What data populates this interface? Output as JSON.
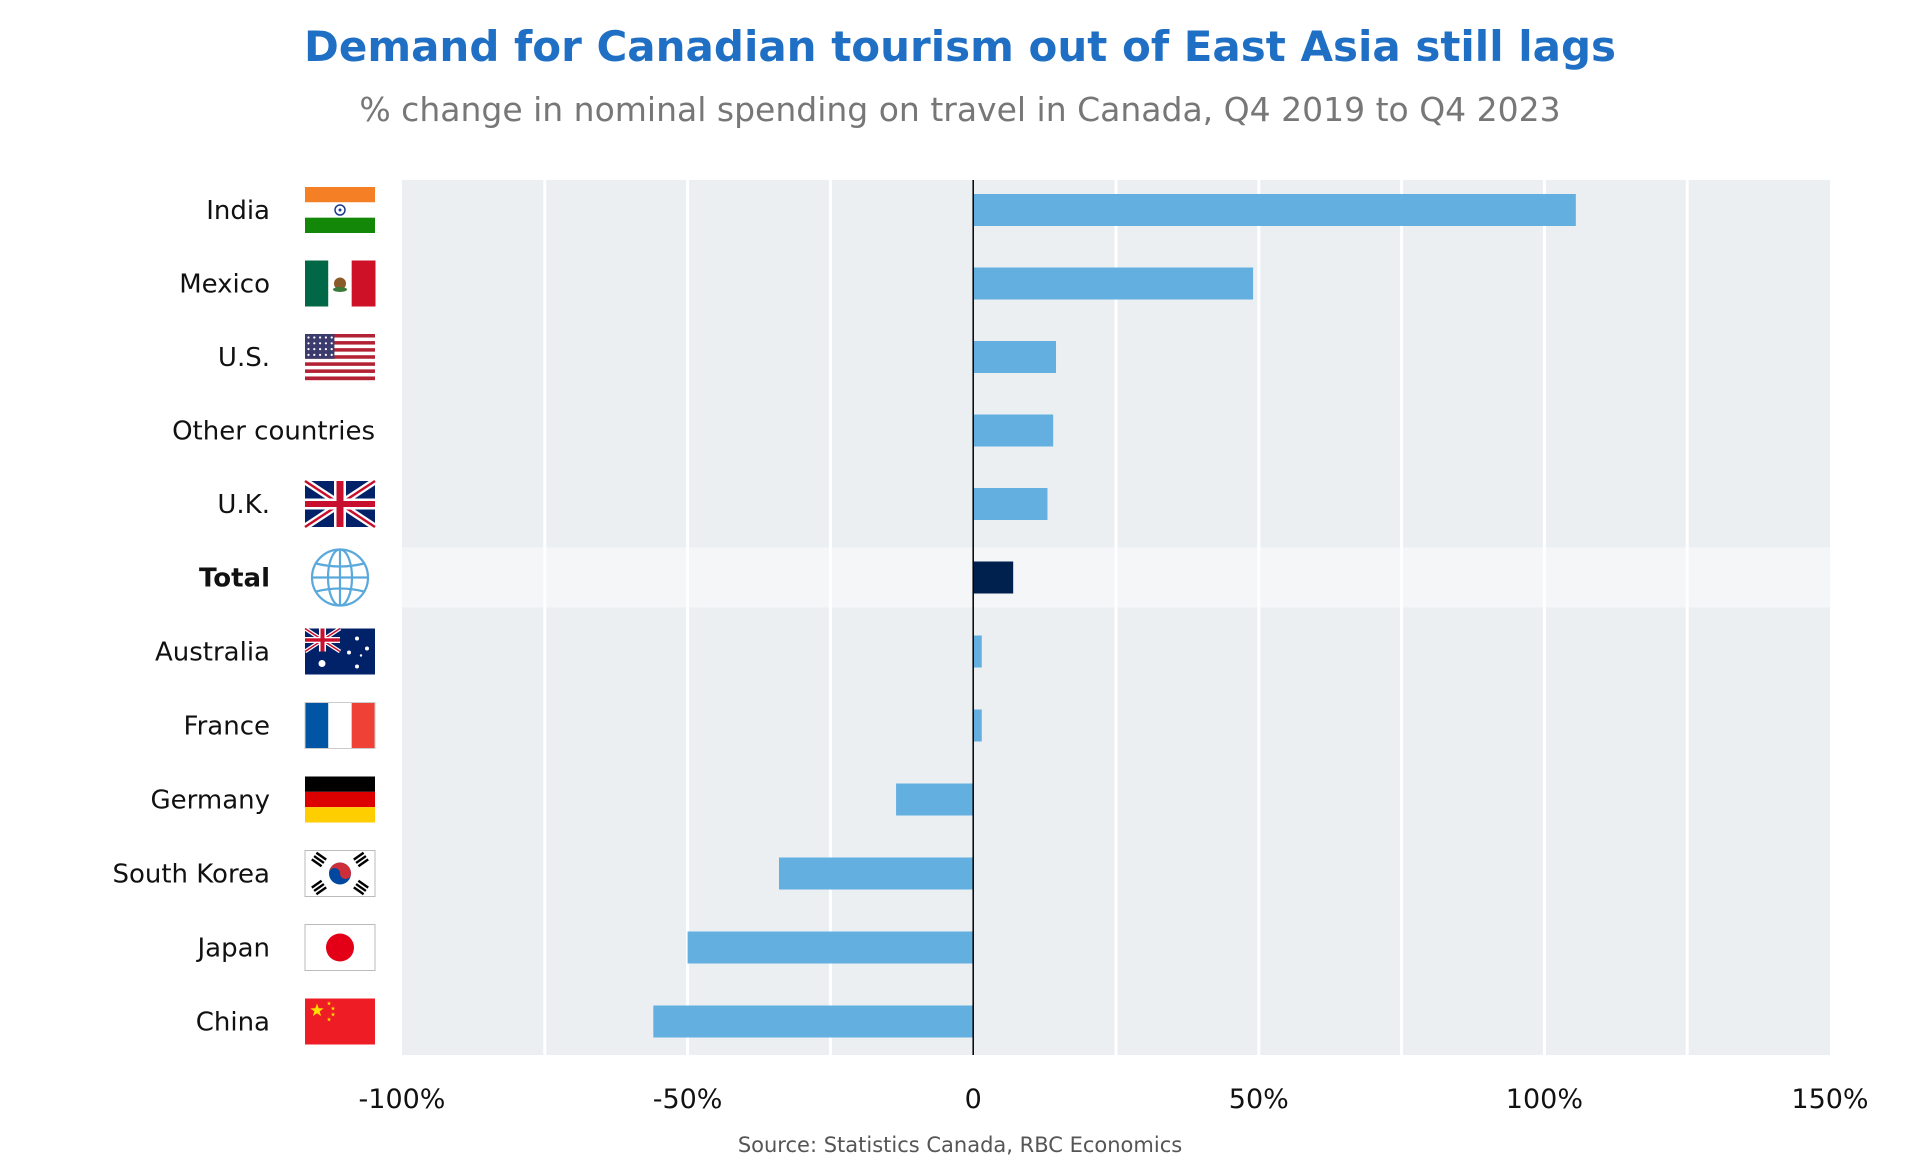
{
  "title": "Demand for Canadian tourism out of East Asia still lags",
  "subtitle": "% change in nominal spending on travel in Canada, Q4 2019 to Q4 2023",
  "source": "Source: Statistics Canada, RBC Economics",
  "chart_data": {
    "type": "bar",
    "orientation": "horizontal",
    "categories": [
      "India",
      "Mexico",
      "U.S.",
      "Other countries",
      "U.K.",
      "Total",
      "Australia",
      "France",
      "Germany",
      "South Korea",
      "Japan",
      "China"
    ],
    "values": [
      105.5,
      49,
      14.5,
      14,
      13,
      7,
      1.5,
      1.5,
      -13.5,
      -34,
      -50,
      -56
    ],
    "highlight": "Total",
    "xlim": [
      -100,
      150
    ],
    "xticks": [
      -100,
      -50,
      0,
      50,
      100,
      150
    ],
    "xtick_labels": [
      "-100%",
      "-50%",
      "0",
      "50%",
      "100%",
      "150%"
    ],
    "grid": true,
    "xlabel": "",
    "ylabel": ""
  },
  "flags": [
    "india-flag-icon",
    "mexico-flag-icon",
    "us-flag-icon",
    "",
    "uk-flag-icon",
    "globe-icon",
    "australia-flag-icon",
    "france-flag-icon",
    "germany-flag-icon",
    "south-korea-flag-icon",
    "japan-flag-icon",
    "china-flag-icon"
  ],
  "colors": {
    "bar": "#62afe0",
    "highlight_bar": "#00204d",
    "plot_bg": "#ebeff2",
    "grid": "#ffffff",
    "title": "#1f6fc5",
    "subtitle": "#777777"
  }
}
